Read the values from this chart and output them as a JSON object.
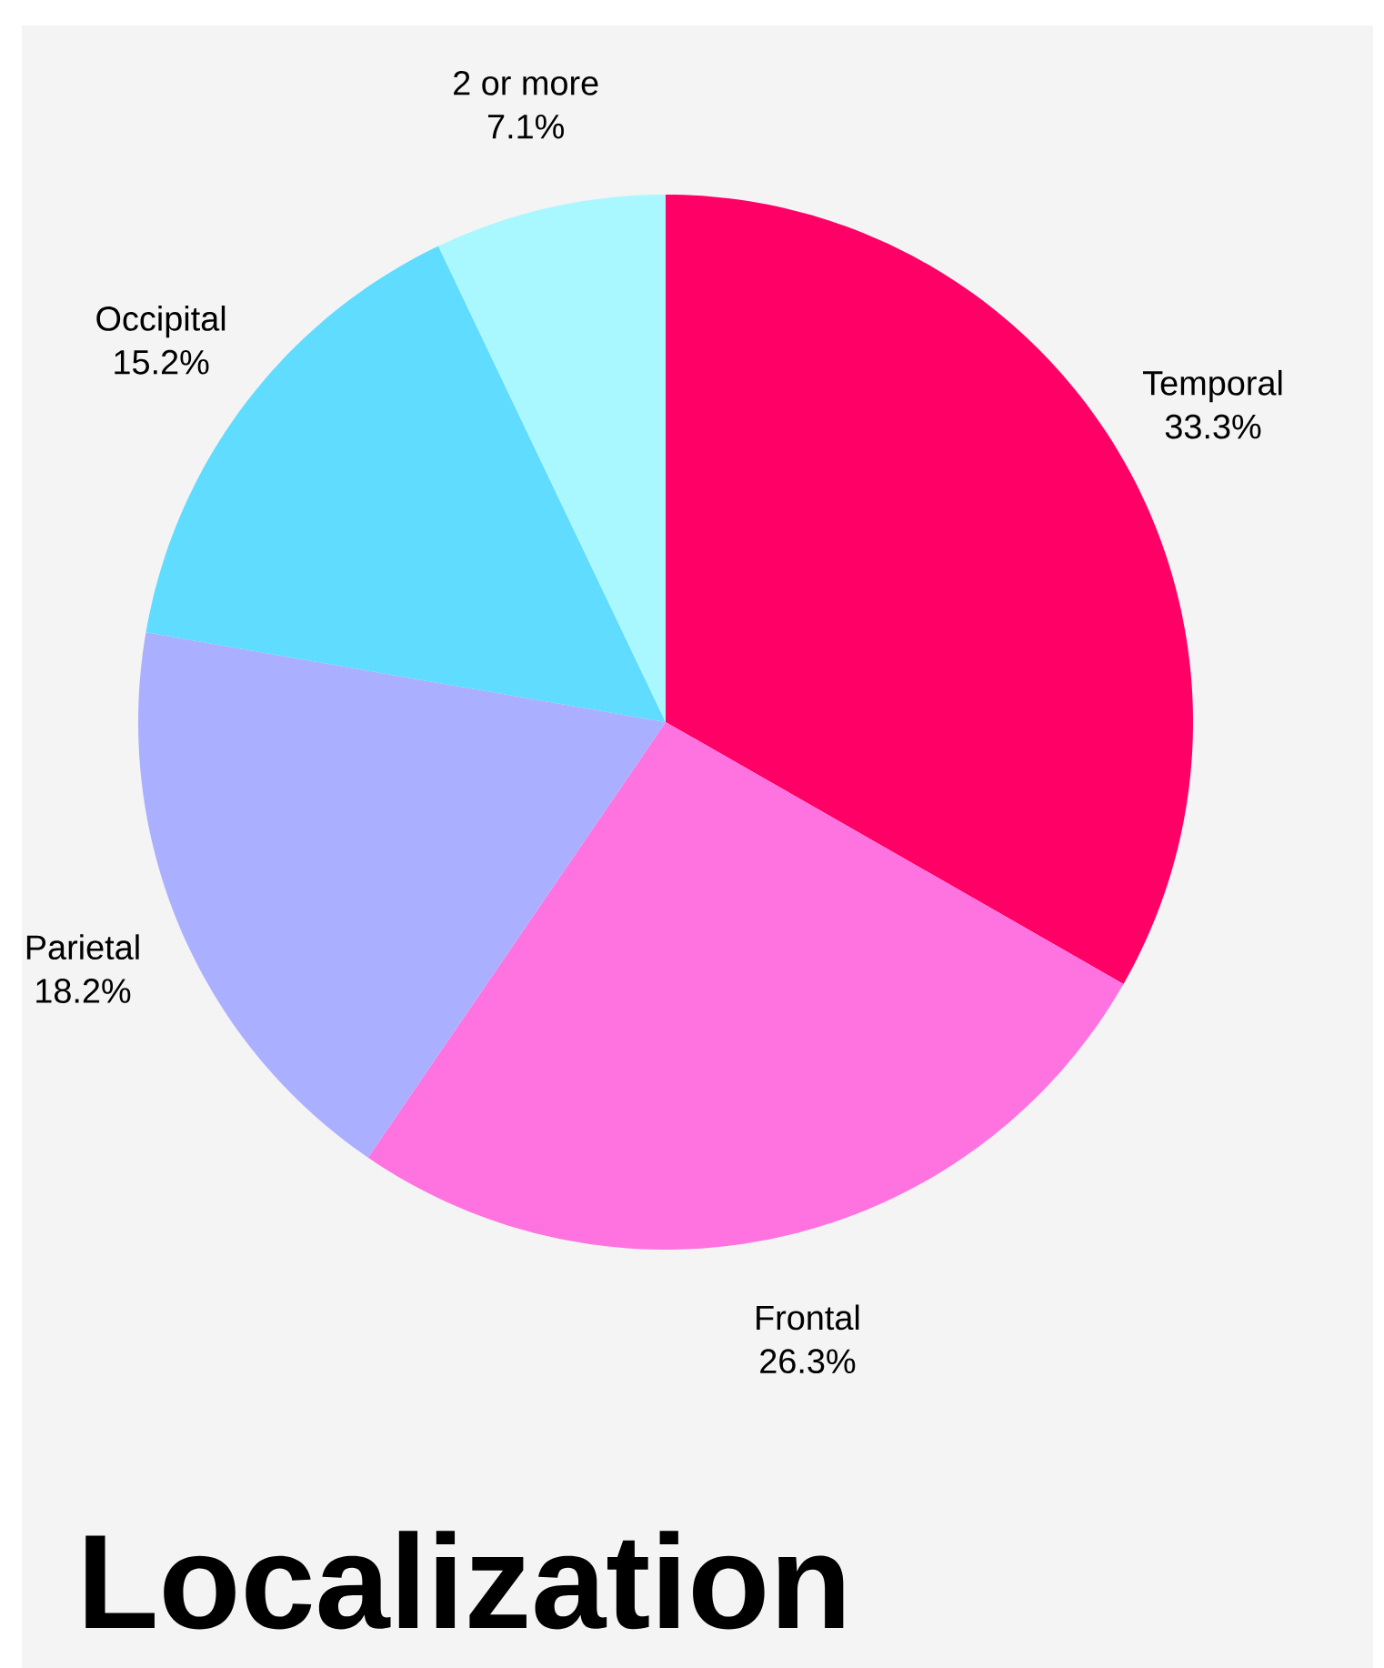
{
  "chart_data": {
    "type": "pie",
    "title": "Localization",
    "categories": [
      "Temporal",
      "Frontal",
      "Parietal",
      "Occipital",
      "2 or more"
    ],
    "values": [
      33.3,
      26.3,
      18.2,
      15.2,
      7.1
    ],
    "value_labels": [
      "33.3%",
      "26.3%",
      "18.2%",
      "15.2%",
      "7.1%"
    ],
    "colors": [
      "#ff0066",
      "#ff73e0",
      "#aab0ff",
      "#5fdcff",
      "#aaf8ff"
    ]
  }
}
